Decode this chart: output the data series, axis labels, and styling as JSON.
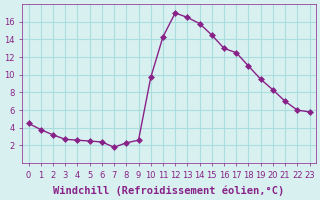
{
  "x": [
    0,
    1,
    2,
    3,
    4,
    5,
    6,
    7,
    8,
    9,
    10,
    11,
    12,
    13,
    14,
    15,
    16,
    17,
    18,
    19,
    20,
    21,
    22,
    23
  ],
  "y": [
    4.5,
    3.8,
    3.2,
    2.7,
    2.6,
    2.5,
    2.4,
    1.8,
    2.3,
    2.6,
    9.7,
    14.3,
    17.0,
    16.5,
    15.8,
    14.5,
    13.0,
    12.5,
    11.0,
    9.5,
    8.3,
    7.0,
    6.0,
    5.8
  ],
  "line_color": "#882288",
  "marker": "D",
  "markersize": 3,
  "linewidth": 1,
  "background_color": "#d8f0f0",
  "grid_color": "#aadddd",
  "xlabel": "Windchill (Refroidissement éolien,°C)",
  "xlabel_fontsize": 7.5,
  "xlabel_color": "#882288",
  "ylim": [
    0,
    18
  ],
  "xlim": [
    -0.5,
    23.5
  ],
  "yticks": [
    2,
    4,
    6,
    8,
    10,
    12,
    14,
    16
  ],
  "xticks": [
    0,
    1,
    2,
    3,
    4,
    5,
    6,
    7,
    8,
    9,
    10,
    11,
    12,
    13,
    14,
    15,
    16,
    17,
    18,
    19,
    20,
    21,
    22,
    23
  ],
  "tick_fontsize": 6,
  "tick_color": "#882288"
}
